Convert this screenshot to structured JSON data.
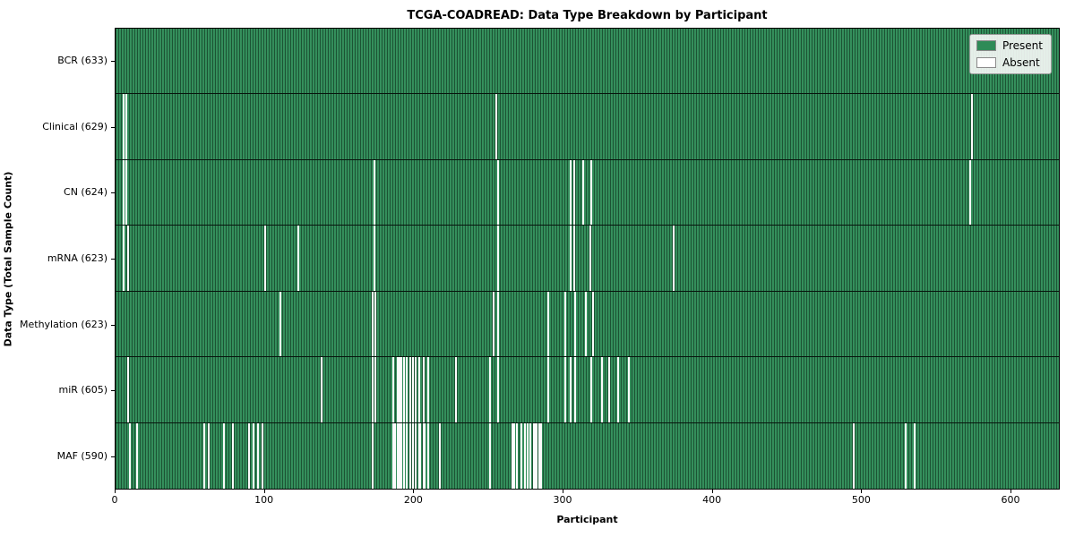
{
  "chart_data": {
    "type": "heatmap",
    "title": "TCGA-COADREAD: Data Type Breakdown by Participant",
    "xlabel": "Participant",
    "ylabel": "Data Type (Total Sample Count)",
    "n_participants": 633,
    "xlim": [
      0,
      633
    ],
    "x_ticks": [
      0,
      100,
      200,
      300,
      400,
      500,
      600
    ],
    "grid": false,
    "legend_position": "upper right",
    "colors": {
      "present": "#2e8b57",
      "absent": "#fbfbfb",
      "bar_edge": "#1c5334",
      "row_separator": "#000000",
      "background": "#ffffff"
    },
    "legend": [
      {
        "label": "Present",
        "color": "#2e8b57"
      },
      {
        "label": "Absent",
        "color": "#ffffff"
      }
    ],
    "rows": [
      {
        "label": "BCR (633)",
        "data_type": "BCR",
        "total": 633,
        "absent": []
      },
      {
        "label": "Clinical (629)",
        "data_type": "Clinical",
        "total": 629,
        "absent": [
          5,
          7,
          255,
          574
        ]
      },
      {
        "label": "CN (624)",
        "data_type": "CN",
        "total": 624,
        "absent": [
          5,
          7,
          173,
          256,
          305,
          307,
          313,
          319,
          573
        ]
      },
      {
        "label": "mRNA (623)",
        "data_type": "mRNA",
        "total": 623,
        "absent": [
          5,
          8,
          100,
          122,
          173,
          256,
          305,
          307,
          318,
          374
        ]
      },
      {
        "label": "Methylation (623)",
        "data_type": "Methylation",
        "total": 623,
        "absent": [
          110,
          172,
          174,
          253,
          256,
          290,
          301,
          308,
          315,
          320
        ]
      },
      {
        "label": "miR (605)",
        "data_type": "miR",
        "total": 605,
        "absent": [
          8,
          138,
          172,
          174,
          186,
          189,
          190,
          191,
          193,
          195,
          197,
          199,
          201,
          203,
          206,
          209,
          228,
          251,
          256,
          290,
          301,
          305,
          308,
          319,
          326,
          331,
          337,
          344
        ]
      },
      {
        "label": "MAF (590)",
        "data_type": "MAF",
        "total": 590,
        "absent": [
          9,
          14,
          59,
          62,
          72,
          78,
          89,
          92,
          95,
          98,
          172,
          186,
          187,
          189,
          190,
          191,
          193,
          195,
          197,
          199,
          201,
          203,
          204,
          206,
          207,
          209,
          217,
          251,
          266,
          267,
          269,
          272,
          274,
          276,
          278,
          280,
          281,
          282,
          284,
          285,
          495,
          530,
          536
        ]
      }
    ]
  }
}
